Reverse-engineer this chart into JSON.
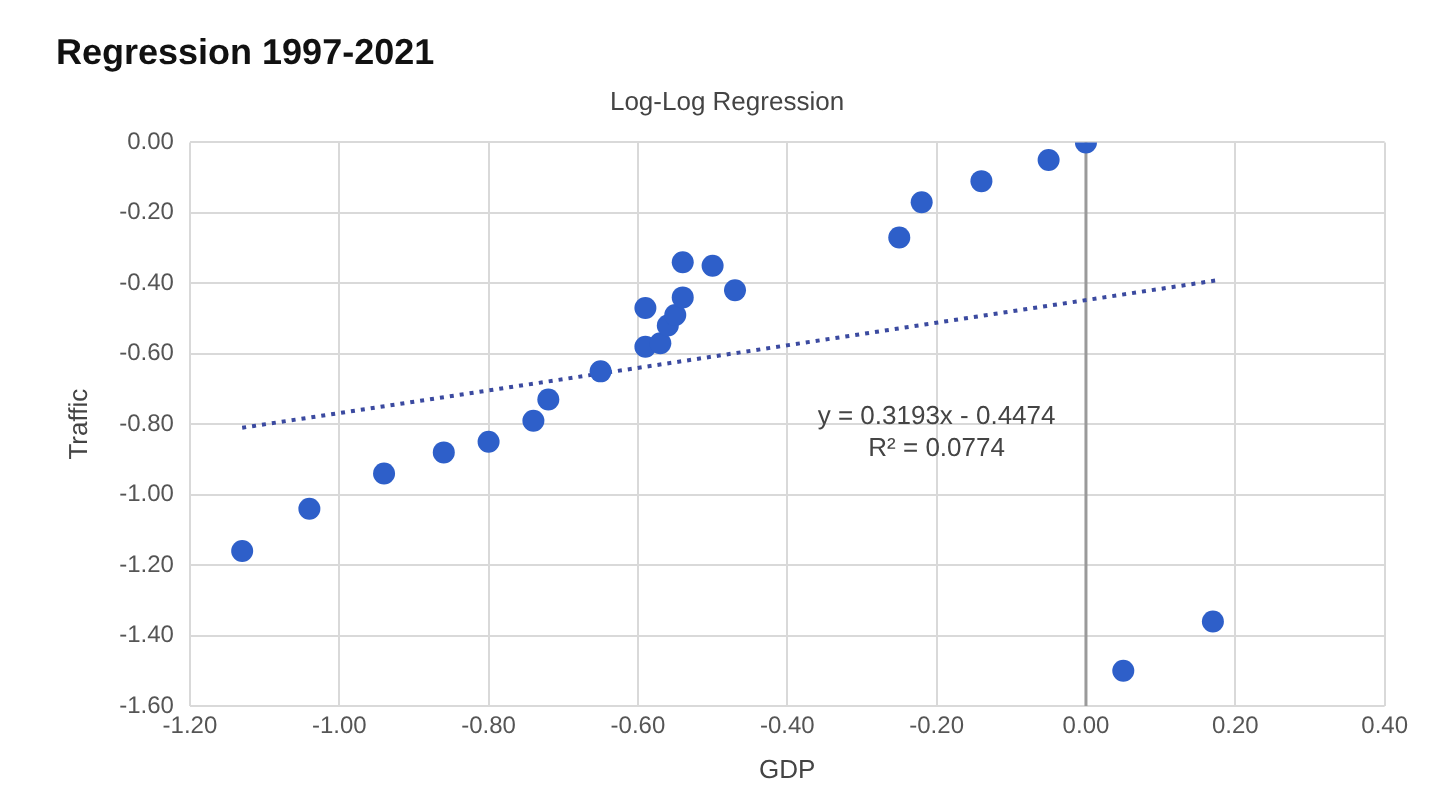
{
  "chart_data": {
    "type": "scatter",
    "title": "Regression 1997-2021",
    "subtitle": "Log-Log Regression",
    "xlabel": "GDP",
    "ylabel": "Traffic",
    "series": [
      {
        "type": "scatter",
        "color": "#2e5fc9",
        "marker": "circle",
        "x": [
          -1.13,
          -1.04,
          -0.94,
          -0.86,
          -0.8,
          -0.74,
          -0.72,
          -0.65,
          -0.59,
          -0.59,
          -0.57,
          -0.56,
          -0.55,
          -0.54,
          -0.54,
          -0.5,
          -0.47,
          -0.25,
          -0.22,
          -0.14,
          -0.05,
          0.0,
          0.05,
          0.17
        ],
        "values": [
          -1.16,
          -1.04,
          -0.94,
          -0.88,
          -0.85,
          -0.79,
          -0.73,
          -0.65,
          -0.47,
          -0.58,
          -0.57,
          -0.52,
          -0.49,
          -0.44,
          -0.34,
          -0.35,
          -0.42,
          -0.27,
          -0.17,
          -0.11,
          -0.05,
          0.0,
          -1.5,
          -1.36
        ]
      },
      {
        "type": "line",
        "color": "#3b4aa0",
        "line_style": "dotted",
        "marker": "none",
        "x": [
          -1.13,
          0.18
        ],
        "values": [
          -0.81,
          -0.39
        ]
      }
    ],
    "xlim": [
      -1.2,
      0.4
    ],
    "xticks": [
      {
        "value": -1.2,
        "label": "-1.20"
      },
      {
        "value": -1.0,
        "label": "-1.00"
      },
      {
        "value": -0.8,
        "label": "-0.80"
      },
      {
        "value": -0.6,
        "label": "-0.60"
      },
      {
        "value": -0.4,
        "label": "-0.40"
      },
      {
        "value": -0.2,
        "label": "-0.20"
      },
      {
        "value": 0,
        "label": "0.00"
      },
      {
        "value": 0.2,
        "label": "0.20"
      },
      {
        "value": 0.4,
        "label": "0.40"
      }
    ],
    "ylim": [
      -1.6,
      0
    ],
    "yticks": [
      {
        "value": -1.6,
        "label": "-1.60"
      },
      {
        "value": -1.4,
        "label": "-1.40"
      },
      {
        "value": -1.2,
        "label": "-1.20"
      },
      {
        "value": -1.0,
        "label": "-1.00"
      },
      {
        "value": -0.8,
        "label": "-0.80"
      },
      {
        "value": -0.6,
        "label": "-0.60"
      },
      {
        "value": -0.4,
        "label": "-0.40"
      },
      {
        "value": -0.2,
        "label": "-0.20"
      },
      {
        "value": 0,
        "label": "0.00"
      }
    ],
    "ref_lines": [
      {
        "axis": "x",
        "value": 0,
        "color": "#9a9a9a"
      }
    ],
    "annotations": [
      "y = 0.3193x - 0.4474",
      "R² = 0.0774"
    ],
    "grid": true,
    "legend": false
  }
}
